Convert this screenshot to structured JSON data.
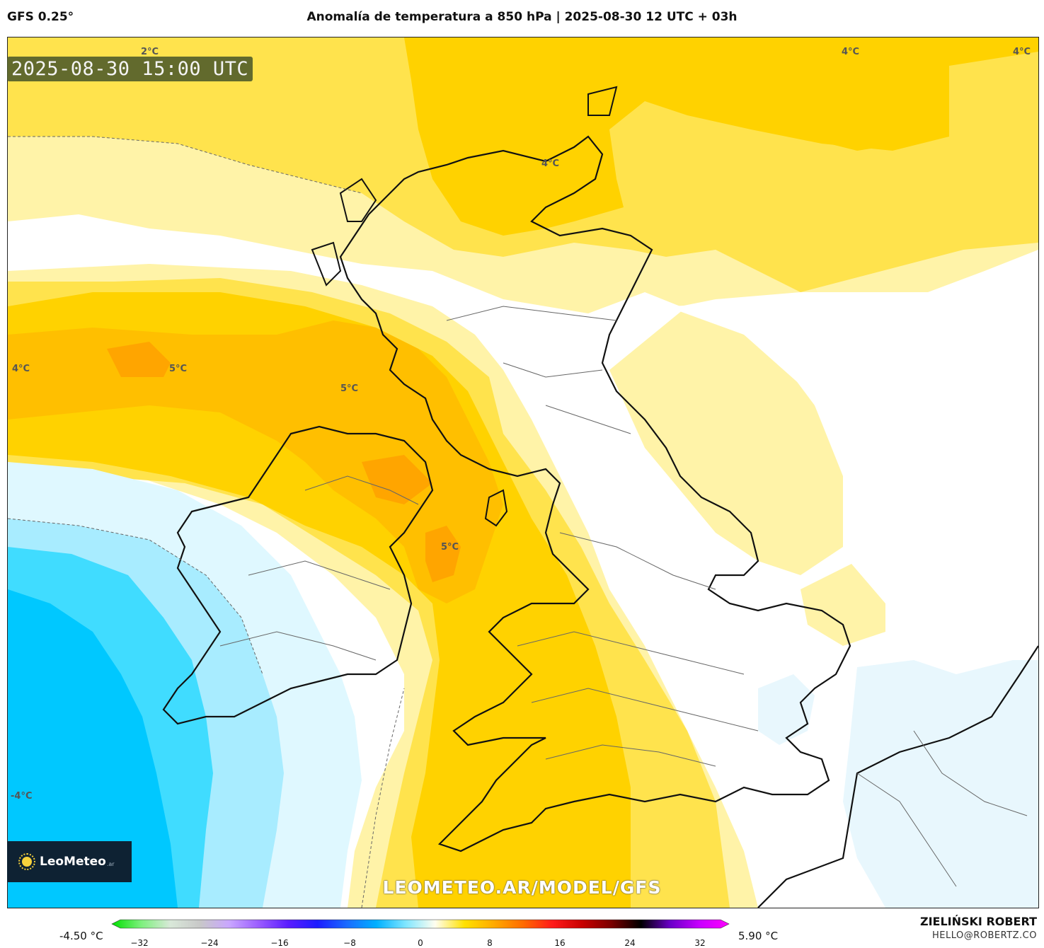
{
  "header": {
    "model": "GFS 0.25°",
    "title": "Anomalía de temperatura a 850 hPa | 2025-08-30 12 UTC + 03h"
  },
  "map": {
    "timestamp": "2025-08-30 15:00 UTC",
    "watermark": "LEOMETEO.AR/MODEL/GFS",
    "logo": {
      "name": "LeoMeteo",
      "suffix": ".ar"
    },
    "contour_labels": [
      "2°C",
      "4°C",
      "4°C",
      "4°C",
      "4°C",
      "5°C",
      "5°C",
      "5°C",
      "-4°C"
    ],
    "colors": {
      "white": "#ffffff",
      "pale_yellow": "#fff3a8",
      "yellow": "#ffe34d",
      "gold": "#ffd200",
      "amber": "#ffbf00",
      "orange": "#ffa500",
      "pale_blue": "#a8ecff",
      "light_blue": "#dff8ff",
      "cyan": "#40dcff",
      "deep_cyan": "#00c8ff"
    }
  },
  "colorbar": {
    "min_label": "-4.50 °C",
    "max_label": "5.90 °C",
    "ticks": [
      "−32",
      "−24",
      "−16",
      "−8",
      "0",
      "8",
      "16",
      "24",
      "32"
    ],
    "stops": [
      "#00e000",
      "#7df07d",
      "#d9e8d9",
      "#c8c8c8",
      "#c9a6ff",
      "#9a5cff",
      "#5a1cff",
      "#1c1cff",
      "#1a6bff",
      "#00b0ff",
      "#7fe6ff",
      "#fffef0",
      "#ffe100",
      "#ffaa00",
      "#ff6a00",
      "#ff1a1a",
      "#c80000",
      "#7a0000",
      "#000000",
      "#6a00c8",
      "#c800ff",
      "#ff00ff"
    ]
  },
  "credits": {
    "author": "ZIELIŃSKI ROBERT",
    "email": "HELLO@ROBERTZ.CO"
  }
}
